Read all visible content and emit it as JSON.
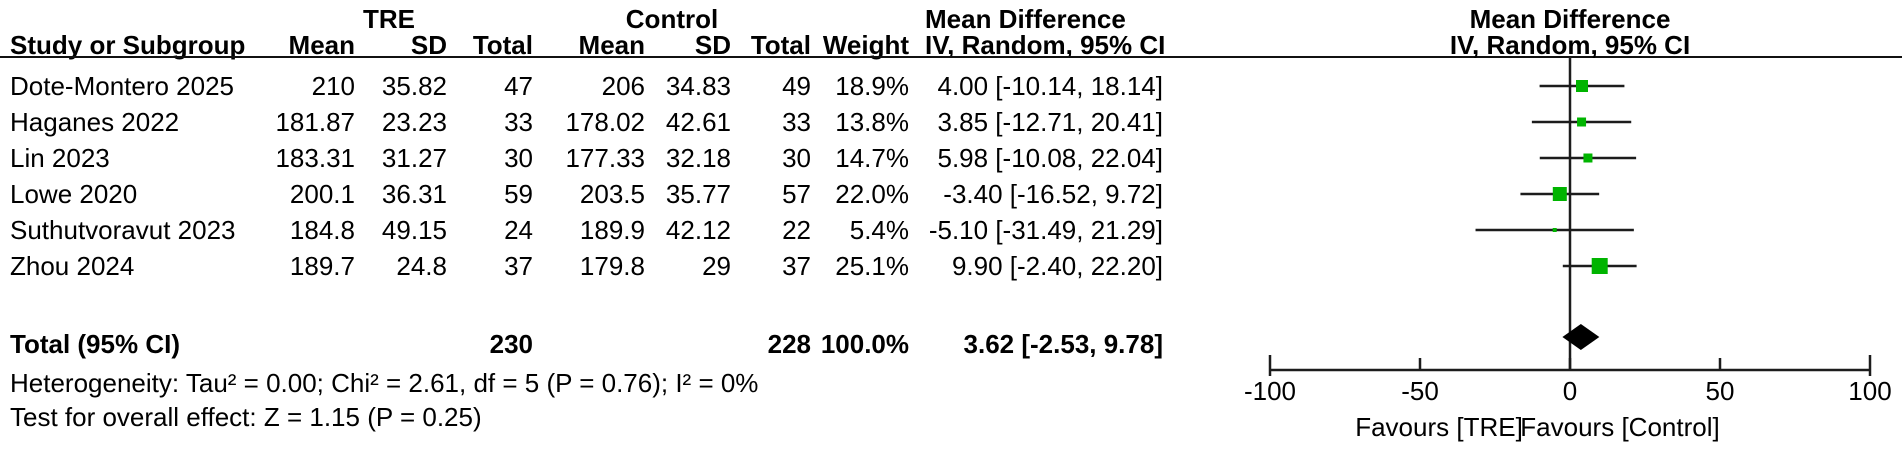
{
  "colors": {
    "marker_green": "#00B400",
    "diamond_black": "#000000",
    "line": "#1C1C1C"
  },
  "table": {
    "group_headers": {
      "group1": "TRE",
      "group2": "Control",
      "effect_col_title": "Mean Difference",
      "effect_col_subtitle": "IV, Random, 95% CI"
    },
    "col_headers": {
      "study": "Study or Subgroup",
      "mean": "Mean",
      "sd": "SD",
      "total": "Total",
      "weight": "Weight",
      "ci": "IV, Random, 95% CI"
    },
    "rows": [
      [
        "Dote-Montero 2025",
        "210",
        "35.82",
        "47",
        "206",
        "34.83",
        "49",
        "18.9%",
        "4.00 [-10.14, 18.14]"
      ],
      [
        "Haganes 2022",
        "181.87",
        "23.23",
        "33",
        "178.02",
        "42.61",
        "33",
        "13.8%",
        "3.85 [-12.71, 20.41]"
      ],
      [
        "Lin 2023",
        "183.31",
        "31.27",
        "30",
        "177.33",
        "32.18",
        "30",
        "14.7%",
        "5.98 [-10.08, 22.04]"
      ],
      [
        "Lowe 2020",
        "200.1",
        "36.31",
        "59",
        "203.5",
        "35.77",
        "57",
        "22.0%",
        "-3.40 [-16.52, 9.72]"
      ],
      [
        "Suthutvoravut 2023",
        "184.8",
        "49.15",
        "24",
        "189.9",
        "42.12",
        "22",
        "5.4%",
        "-5.10 [-31.49, 21.29]"
      ],
      [
        "Zhou 2024",
        "189.7",
        "24.8",
        "37",
        "179.8",
        "29",
        "37",
        "25.1%",
        "9.90 [-2.40, 22.20]"
      ]
    ],
    "total_row": {
      "label": "Total (95% CI)",
      "total1": "230",
      "total2": "228",
      "weight": "100.0%",
      "ci": "3.62 [-2.53, 9.78]"
    },
    "heterogeneity": "Heterogeneity: Tau² = 0.00; Chi² = 2.61, df = 5 (P = 0.76); I² = 0%",
    "overall_effect": "Test for overall effect: Z = 1.15 (P = 0.25)"
  },
  "plot": {
    "title": "Mean Difference",
    "subtitle": "IV, Random, 95% CI"
  },
  "chart_data": {
    "type": "scatter",
    "chart_kind": "forest_plot",
    "title": "Mean Difference",
    "model": "IV, Random, 95% CI",
    "x_axis": {
      "range": [
        -100,
        100
      ],
      "ticks": [
        -100,
        -50,
        0,
        50,
        100
      ]
    },
    "favours_left": "Favours [TRE]",
    "favours_right": "Favours [Control]",
    "studies": [
      {
        "name": "Dote-Montero 2025",
        "md": 4.0,
        "ci_lo": -10.14,
        "ci_hi": 18.14,
        "weight_pct": 18.9
      },
      {
        "name": "Haganes 2022",
        "md": 3.85,
        "ci_lo": -12.71,
        "ci_hi": 20.41,
        "weight_pct": 13.8
      },
      {
        "name": "Lin 2023",
        "md": 5.98,
        "ci_lo": -10.08,
        "ci_hi": 22.04,
        "weight_pct": 14.7
      },
      {
        "name": "Lowe 2020",
        "md": -3.4,
        "ci_lo": -16.52,
        "ci_hi": 9.72,
        "weight_pct": 22.0
      },
      {
        "name": "Suthutvoravut 2023",
        "md": -5.1,
        "ci_lo": -31.49,
        "ci_hi": 21.29,
        "weight_pct": 5.4
      },
      {
        "name": "Zhou 2024",
        "md": 9.9,
        "ci_lo": -2.4,
        "ci_hi": 22.2,
        "weight_pct": 25.1
      }
    ],
    "total": {
      "label": "Total (95% CI)",
      "md": 3.62,
      "ci_lo": -2.53,
      "ci_hi": 9.78,
      "weight_pct": 100.0
    }
  }
}
